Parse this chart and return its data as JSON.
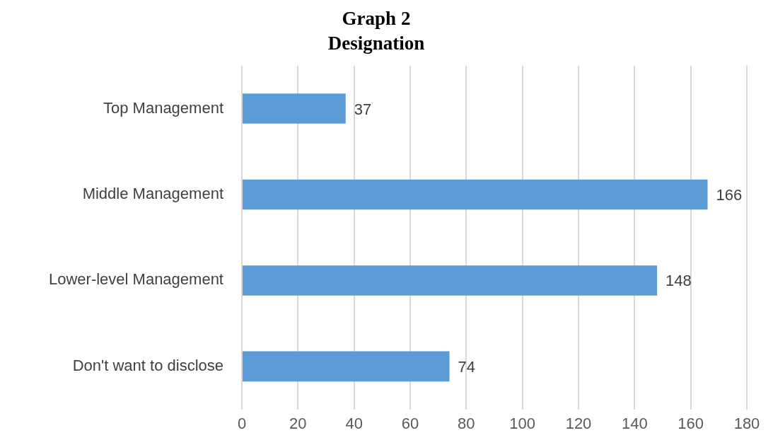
{
  "chart_data": {
    "type": "bar",
    "orientation": "horizontal",
    "title": "Graph 2",
    "subtitle": "Designation",
    "categories": [
      "Top Management",
      "Middle Management",
      "Lower-level Management",
      "Don't want to disclose"
    ],
    "values": [
      37,
      166,
      148,
      74
    ],
    "color": "#5b9bd5",
    "xlim": [
      0,
      180
    ],
    "xticks": [
      0,
      20,
      40,
      60,
      80,
      100,
      120,
      140,
      160,
      180
    ],
    "grid": "x",
    "data_labels": true,
    "legend": false
  }
}
